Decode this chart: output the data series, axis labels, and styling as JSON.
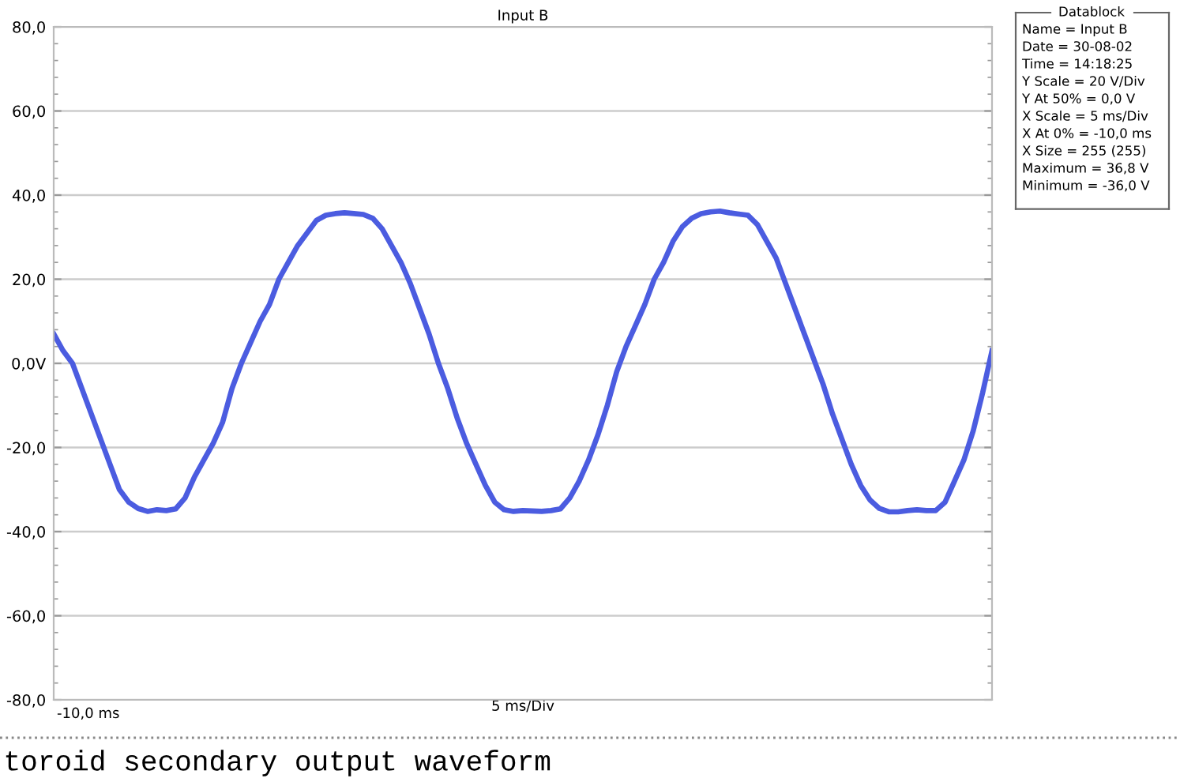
{
  "chart_data": {
    "type": "line",
    "title": "Input B",
    "xlabel": "5 ms/Div",
    "categories": [
      null,
      null,
      null,
      null,
      null,
      null,
      null,
      null,
      null,
      null,
      null,
      null,
      null,
      null,
      null,
      null,
      null,
      null,
      null,
      null,
      null,
      null,
      null,
      null,
      null,
      null,
      null,
      null,
      null,
      null,
      null,
      null,
      null,
      null,
      null,
      null,
      null,
      null,
      null,
      null,
      null,
      null,
      null,
      null,
      null,
      null,
      null,
      null,
      null,
      null,
      null,
      null,
      null,
      null,
      null,
      null,
      null,
      null,
      null,
      null,
      null,
      null,
      null,
      null,
      null,
      null,
      null,
      null,
      null,
      null,
      null,
      null,
      null,
      null,
      null,
      null,
      null,
      null,
      null,
      null,
      null,
      null,
      null,
      null,
      null,
      null,
      null,
      null,
      null,
      null,
      null,
      null,
      null,
      null,
      null,
      null,
      null,
      null,
      null,
      null,
      null
    ],
    "series": [
      {
        "color": "#4b5ce0",
        "values": [
          7,
          3,
          0,
          -6,
          -12,
          -18,
          -24,
          -30,
          -33,
          -34.5,
          -35.2,
          -34.8,
          -35,
          -34.6,
          -32,
          -27,
          -23,
          -19,
          -14,
          -6,
          0,
          5,
          10,
          14,
          20,
          24,
          28,
          31,
          34,
          35.2,
          35.6,
          35.8,
          35.6,
          35.4,
          34.5,
          32,
          28,
          24,
          19,
          13,
          7,
          0,
          -6,
          -13,
          -19,
          -24,
          -29,
          -33,
          -34.8,
          -35.2,
          -35,
          -35.1,
          -35.2,
          -35,
          -34.6,
          -32,
          -28,
          -23,
          -17,
          -10,
          -2,
          4,
          9,
          14,
          20,
          24,
          29,
          32.5,
          34.5,
          35.6,
          36,
          36.2,
          35.8,
          35.5,
          35.2,
          33,
          29,
          25,
          19,
          13,
          7,
          1,
          -5,
          -12,
          -18,
          -24,
          -29,
          -32.5,
          -34.5,
          -35.3,
          -35.3,
          -35,
          -34.8,
          -35,
          -35,
          -33,
          -28,
          -23,
          -16,
          -7,
          3
        ]
      }
    ],
    "ylim": [
      -80,
      80
    ],
    "yticks": [
      {
        "value": -80,
        "label": "-80,0"
      },
      {
        "value": -60,
        "label": "-60,0"
      },
      {
        "value": -40,
        "label": "-40,0"
      },
      {
        "value": -20,
        "label": "-20,0"
      },
      {
        "value": 0,
        "label": "0,0V"
      },
      {
        "value": 20,
        "label": "20,0"
      },
      {
        "value": 40,
        "label": "40,0"
      },
      {
        "value": 60,
        "label": "60,0"
      },
      {
        "value": 80,
        "label": "80,0"
      }
    ],
    "grid": true,
    "legend": false,
    "marker": "none",
    "line_style": "solid",
    "annotations": [
      "-10,0 ms",
      "Datablock",
      "Name = Input B",
      "Date = 30-08-02",
      "Time = 14:18:25",
      "Y Scale = 20 V/Div",
      "Y At 50% = 0,0 V",
      "X Scale = 5 ms/Div",
      "X At 0% = -10,0 ms",
      "X Size = 255 (255)",
      "Maximum = 36,8 V",
      "Minimum = -36,0 V",
      "toroid secondary output waveform"
    ]
  }
}
